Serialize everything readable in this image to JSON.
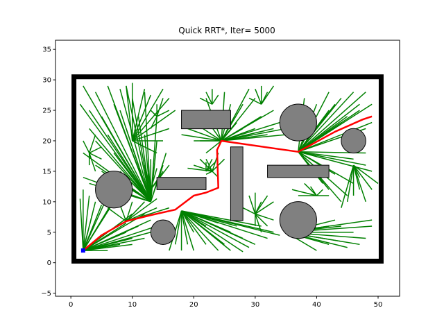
{
  "chart_data": {
    "type": "path-planning-plot",
    "title": "Quick RRT*, Iter= 5000",
    "xlim": [
      -2.5,
      53.5
    ],
    "ylim": [
      -5.5,
      36.5
    ],
    "xticks": [
      0,
      10,
      20,
      30,
      40,
      50
    ],
    "yticks": [
      -5,
      0,
      5,
      10,
      15,
      20,
      25,
      30,
      35
    ],
    "grid": false,
    "colors": {
      "tree": "#008000",
      "path": "#ff0000",
      "obstacle_fill": "#808080",
      "boundary": "#000000",
      "start": "#0000ff"
    },
    "boundary": {
      "x0": 0.5,
      "y0": 0.5,
      "x1": 50.5,
      "y1": 30.5
    },
    "obstacles_circles": [
      {
        "cx": 7,
        "cy": 12,
        "r": 3
      },
      {
        "cx": 15,
        "cy": 5,
        "r": 2
      },
      {
        "cx": 37,
        "cy": 23,
        "r": 3
      },
      {
        "cx": 37,
        "cy": 7,
        "r": 3
      },
      {
        "cx": 46,
        "cy": 20,
        "r": 2
      }
    ],
    "obstacles_rectangles": [
      {
        "x": 18,
        "y": 22,
        "w": 8,
        "h": 3
      },
      {
        "x": 14,
        "y": 12,
        "w": 8,
        "h": 2
      },
      {
        "x": 26,
        "y": 7,
        "w": 2,
        "h": 12
      },
      {
        "x": 32,
        "y": 14,
        "w": 10,
        "h": 2
      }
    ],
    "start": {
      "x": 2,
      "y": 2
    },
    "goal": {
      "x": 49,
      "y": 24
    },
    "path": [
      [
        2,
        2
      ],
      [
        5,
        4.5
      ],
      [
        9,
        6.8
      ],
      [
        13,
        7.8
      ],
      [
        17,
        8.7
      ],
      [
        20,
        11
      ],
      [
        22,
        11.5
      ],
      [
        24,
        12.3
      ],
      [
        23.8,
        18.5
      ],
      [
        24.5,
        20
      ],
      [
        37,
        18.2
      ],
      [
        43,
        21.5
      ],
      [
        47.5,
        23.5
      ],
      [
        49,
        24
      ]
    ],
    "tree_fans": [
      {
        "root": [
          2,
          2
        ],
        "ends": [
          [
            3,
            11
          ],
          [
            4,
            10
          ],
          [
            6,
            11
          ],
          [
            2,
            12
          ],
          [
            5,
            9.5
          ],
          [
            8,
            12
          ],
          [
            9,
            6.5
          ],
          [
            10,
            8
          ],
          [
            12,
            8
          ],
          [
            13,
            7
          ],
          [
            14,
            6
          ],
          [
            13,
            5
          ],
          [
            10,
            4
          ],
          [
            8,
            3
          ],
          [
            6,
            2
          ],
          [
            10,
            3
          ],
          [
            12,
            4
          ],
          [
            1.5,
            10.5
          ],
          [
            3.5,
            8
          ],
          [
            7,
            10
          ],
          [
            11,
            6
          ],
          [
            9,
            5
          ]
        ]
      },
      {
        "root": [
          9,
          6.8
        ],
        "ends": [
          [
            10,
            10
          ],
          [
            12,
            10
          ],
          [
            14,
            10.5
          ],
          [
            14,
            9
          ],
          [
            6,
            9
          ],
          [
            8,
            9.5
          ],
          [
            16,
            9
          ]
        ]
      },
      {
        "root": [
          13,
          10
        ],
        "ends": [
          [
            2,
            29
          ],
          [
            4,
            28
          ],
          [
            6,
            29
          ],
          [
            8,
            28.5
          ],
          [
            3,
            25
          ],
          [
            5,
            24
          ],
          [
            8,
            25
          ],
          [
            10,
            27
          ],
          [
            12,
            28
          ],
          [
            3,
            22
          ],
          [
            4,
            20
          ],
          [
            6,
            21
          ],
          [
            2,
            18
          ],
          [
            4,
            16
          ],
          [
            7,
            18
          ],
          [
            9,
            22
          ],
          [
            11,
            24
          ],
          [
            2,
            14
          ],
          [
            3,
            13
          ],
          [
            5,
            15
          ],
          [
            8,
            15
          ],
          [
            10,
            19
          ],
          [
            12,
            21
          ],
          [
            14,
            24
          ],
          [
            14,
            20
          ],
          [
            13,
            17
          ],
          [
            15,
            16
          ],
          [
            15.5,
            18
          ],
          [
            9,
            29
          ],
          [
            7,
            26
          ],
          [
            11,
            16
          ],
          [
            1.5,
            26
          ]
        ]
      },
      {
        "root": [
          10,
          20
        ],
        "ends": [
          [
            9,
            29
          ],
          [
            10,
            29.5
          ],
          [
            12,
            28.5
          ],
          [
            13,
            27.5
          ],
          [
            15,
            28.5
          ],
          [
            16,
            27
          ],
          [
            17,
            25
          ],
          [
            16,
            22
          ],
          [
            15,
            20
          ],
          [
            14,
            18
          ]
        ]
      },
      {
        "root": [
          18,
          8.5
        ],
        "ends": [
          [
            28,
            4
          ],
          [
            30,
            3
          ],
          [
            32,
            4
          ],
          [
            33,
            5
          ],
          [
            31,
            6
          ],
          [
            29,
            2.5
          ],
          [
            27,
            6
          ],
          [
            26,
            5
          ],
          [
            34,
            4.5
          ],
          [
            25,
            3
          ],
          [
            24,
            2
          ],
          [
            22,
            3
          ],
          [
            20,
            2
          ],
          [
            19,
            3
          ],
          [
            18,
            2
          ],
          [
            22,
            6
          ],
          [
            24,
            6.5
          ],
          [
            20,
            5
          ],
          [
            17,
            3
          ],
          [
            16,
            2
          ],
          [
            26,
            2
          ],
          [
            28,
            1.8
          ]
        ]
      },
      {
        "root": [
          35,
          5
        ],
        "ends": [
          [
            44,
            6
          ],
          [
            46,
            5
          ],
          [
            48,
            4
          ],
          [
            49,
            6
          ],
          [
            47,
            3
          ],
          [
            45,
            2.5
          ],
          [
            42,
            3
          ],
          [
            40,
            2
          ],
          [
            43,
            7
          ],
          [
            49,
            7
          ],
          [
            42,
            6
          ],
          [
            44,
            3.5
          ],
          [
            39,
            4
          ]
        ]
      },
      {
        "root": [
          24.5,
          20
        ],
        "ends": [
          [
            21,
            25
          ],
          [
            22,
            27
          ],
          [
            25,
            28
          ],
          [
            26,
            26
          ],
          [
            28,
            26
          ],
          [
            29,
            28.5
          ],
          [
            30,
            27
          ],
          [
            31,
            24
          ],
          [
            33,
            25
          ],
          [
            34,
            23
          ],
          [
            35,
            21
          ],
          [
            20,
            23
          ],
          [
            19,
            22
          ],
          [
            18,
            21
          ],
          [
            20,
            20
          ],
          [
            21,
            20
          ],
          [
            22,
            18
          ],
          [
            28,
            22
          ],
          [
            30,
            22
          ],
          [
            32,
            21
          ],
          [
            33,
            22
          ],
          [
            35,
            22
          ],
          [
            29,
            21
          ],
          [
            27,
            23
          ]
        ]
      },
      {
        "root": [
          37,
          18.2
        ],
        "ends": [
          [
            38,
            27
          ],
          [
            40,
            26
          ],
          [
            42,
            28
          ],
          [
            43,
            26
          ],
          [
            44,
            27
          ],
          [
            46,
            28
          ],
          [
            47,
            26
          ],
          [
            48,
            28
          ],
          [
            45,
            24
          ],
          [
            44,
            23
          ],
          [
            46,
            17
          ],
          [
            48,
            16
          ],
          [
            49,
            15
          ],
          [
            48,
            18
          ],
          [
            42,
            12
          ],
          [
            44,
            10
          ],
          [
            45,
            11
          ],
          [
            46,
            13
          ],
          [
            43,
            14.5
          ],
          [
            41,
            13
          ],
          [
            49,
            23
          ],
          [
            48,
            22
          ],
          [
            47,
            25
          ],
          [
            49,
            26
          ],
          [
            42,
            25
          ]
        ]
      },
      {
        "root": [
          46,
          16
        ],
        "ends": [
          [
            44,
            9
          ],
          [
            45,
            10
          ],
          [
            46,
            11
          ],
          [
            47,
            12
          ],
          [
            48,
            10
          ],
          [
            49,
            12
          ],
          [
            47,
            14
          ],
          [
            50,
            13
          ]
        ]
      },
      {
        "root": [
          23,
          15
        ],
        "ends": [
          [
            20,
            16
          ],
          [
            19,
            15.5
          ],
          [
            21,
            17
          ],
          [
            22,
            17
          ],
          [
            24,
            18
          ],
          [
            25,
            17
          ],
          [
            24,
            14
          ],
          [
            22,
            14.5
          ]
        ]
      },
      {
        "root": [
          3,
          18
        ],
        "ends": [
          [
            2,
            20
          ],
          [
            4,
            21
          ],
          [
            3,
            16
          ],
          [
            4,
            15
          ],
          [
            5,
            17
          ],
          [
            5,
            19
          ]
        ]
      },
      {
        "root": [
          23,
          26
        ],
        "ends": [
          [
            22,
            28
          ],
          [
            23,
            28.5
          ],
          [
            24,
            27.5
          ],
          [
            21,
            27
          ]
        ]
      },
      {
        "root": [
          31,
          26
        ],
        "ends": [
          [
            30,
            28.5
          ],
          [
            31,
            29
          ],
          [
            32,
            28
          ],
          [
            33,
            29
          ],
          [
            29,
            27
          ]
        ]
      },
      {
        "root": [
          40,
          11
        ],
        "ends": [
          [
            38,
            13
          ],
          [
            39,
            12.5
          ],
          [
            41,
            12
          ],
          [
            36,
            12
          ],
          [
            37,
            11
          ],
          [
            42,
            11
          ]
        ]
      },
      {
        "root": [
          30,
          8
        ],
        "ends": [
          [
            29,
            11
          ],
          [
            30,
            11.5
          ],
          [
            31,
            10
          ],
          [
            32,
            11
          ],
          [
            33,
            10
          ],
          [
            28,
            9
          ],
          [
            30,
            6
          ],
          [
            31,
            5
          ],
          [
            32,
            6
          ],
          [
            33,
            7
          ]
        ]
      },
      {
        "root": [
          14,
          24
        ],
        "ends": [
          [
            13,
            25
          ],
          [
            14,
            26
          ],
          [
            16,
            25
          ],
          [
            15,
            27
          ],
          [
            13,
            22
          ]
        ]
      },
      {
        "root": [
          13,
          12
        ],
        "ends": [
          [
            12,
            16
          ],
          [
            13,
            16
          ],
          [
            14,
            15.5
          ],
          [
            15,
            15
          ],
          [
            16,
            16
          ]
        ]
      },
      {
        "root": [
          22,
          15
        ],
        "ends": [
          [
            23,
            17
          ],
          [
            23.5,
            16.5
          ],
          [
            22,
            16.5
          ]
        ]
      }
    ]
  }
}
